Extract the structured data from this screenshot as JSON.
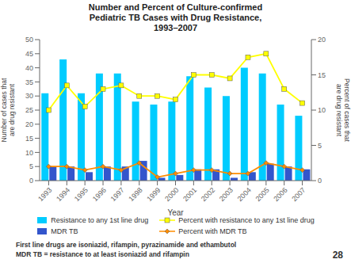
{
  "chart_data": {
    "type": "bar",
    "title": "Number and Percent of Culture-confirmed\nPediatric TB Cases with Drug Resistance,\n1993–2007",
    "xlabel": "Year",
    "ylabel": "Number of cases that\nare drug resistant",
    "y2label": "Percent of cases that\nare drug resistant",
    "categories": [
      "1993",
      "1994",
      "1995",
      "1996",
      "1997",
      "1998",
      "1999",
      "2000",
      "2001",
      "2002",
      "2003",
      "2004",
      "2005",
      "2006",
      "2007"
    ],
    "series": [
      {
        "name": "Resistance to any 1st line drug",
        "type": "bar",
        "color": "#00CCFF",
        "values": [
          31,
          43,
          31,
          38,
          38,
          28,
          27,
          28,
          37,
          33,
          30,
          40,
          38,
          27,
          23
        ]
      },
      {
        "name": "MDR TB",
        "type": "bar",
        "color": "#3355CC",
        "values": [
          5,
          5,
          3,
          5,
          5,
          7,
          1,
          2,
          4,
          4,
          1,
          3,
          6,
          5,
          4
        ]
      },
      {
        "name": "Percent with resistance to any 1st line drug",
        "type": "line",
        "axis": "y2",
        "color": "#FFFF00",
        "marker": "square",
        "values": [
          10,
          13.5,
          10.5,
          13,
          13.5,
          12,
          12,
          11.5,
          15,
          15,
          14.5,
          17.5,
          18,
          13,
          11
        ]
      },
      {
        "name": "Percent with MDR TB",
        "type": "line",
        "axis": "y2",
        "color": "#FF8C00",
        "marker": "diamond",
        "values": [
          2,
          2,
          1.5,
          2,
          1.5,
          2.5,
          0.5,
          1,
          1.5,
          1.5,
          1,
          1,
          2.5,
          2,
          1.5
        ]
      }
    ],
    "ylim": [
      0,
      50
    ],
    "yticks": [
      0,
      5,
      10,
      15,
      20,
      25,
      30,
      35,
      40,
      45,
      50
    ],
    "y2lim": [
      0,
      20
    ],
    "y2ticks": [
      0,
      5,
      10,
      15,
      20
    ],
    "grid": false,
    "legend": "bottom",
    "annotations": [
      "First line drugs are isoniazid, rifampin, pyrazinamide and ethambutol",
      "MDR TB = resistance to at least isoniazid and rifampin",
      "28"
    ]
  }
}
